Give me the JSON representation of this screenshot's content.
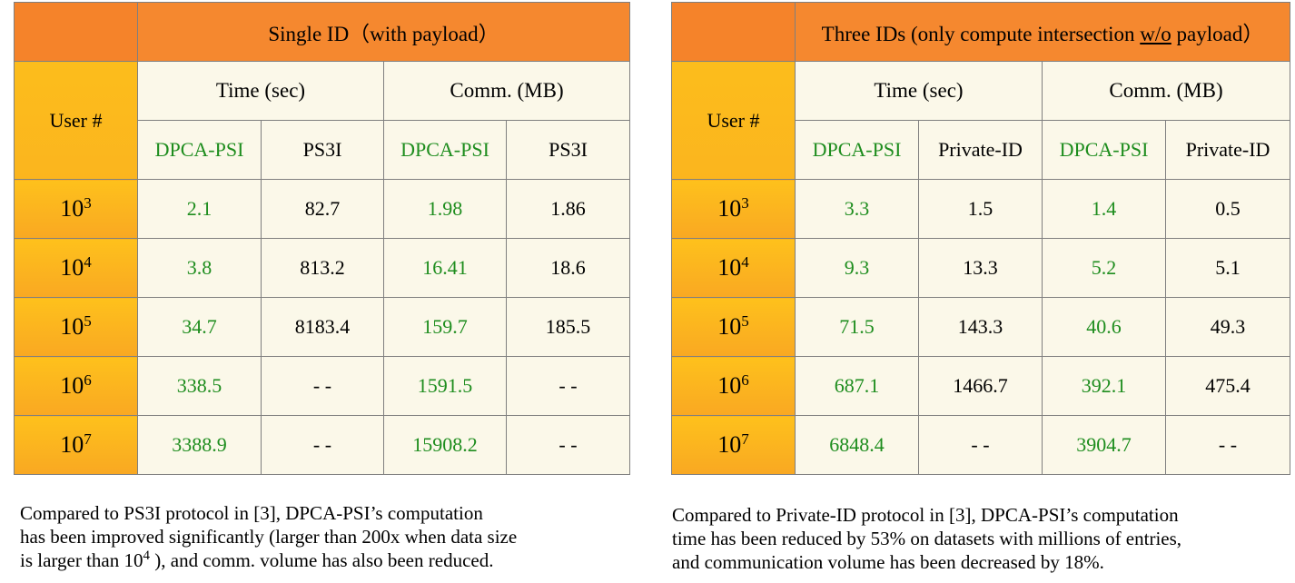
{
  "left_table": {
    "title": "Single ID（with payload）",
    "user_header": "User #",
    "group_time": "Time (sec)",
    "group_comm": "Comm. (MB)",
    "method_a": "DPCA-PSI",
    "method_b": "PS3I",
    "method_c": "DPCA-PSI",
    "method_d": "PS3I",
    "rows": [
      {
        "base": "10",
        "exp": "3",
        "time_a": "2.1",
        "time_b": "82.7",
        "comm_a": "1.98",
        "comm_b": "1.86"
      },
      {
        "base": "10",
        "exp": "4",
        "time_a": "3.8",
        "time_b": "813.2",
        "comm_a": "16.41",
        "comm_b": "18.6"
      },
      {
        "base": "10",
        "exp": "5",
        "time_a": "34.7",
        "time_b": "8183.4",
        "comm_a": "159.7",
        "comm_b": "185.5"
      },
      {
        "base": "10",
        "exp": "6",
        "time_a": "338.5",
        "time_b": "- -",
        "comm_a": "1591.5",
        "comm_b": "- -"
      },
      {
        "base": "10",
        "exp": "7",
        "time_a": "3388.9",
        "time_b": "- -",
        "comm_a": "15908.2",
        "comm_b": "- -"
      }
    ]
  },
  "right_table": {
    "title_pre": "Three IDs (only compute intersection ",
    "title_underlined": "w/o",
    "title_post": " payload）",
    "user_header": "User #",
    "group_time": "Time (sec)",
    "group_comm": "Comm. (MB)",
    "method_a": "DPCA-PSI",
    "method_b": "Private-ID",
    "method_c": "DPCA-PSI",
    "method_d": "Private-ID",
    "rows": [
      {
        "base": "10",
        "exp": "3",
        "time_a": "3.3",
        "time_b": "1.5",
        "comm_a": "1.4",
        "comm_b": "0.5"
      },
      {
        "base": "10",
        "exp": "4",
        "time_a": "9.3",
        "time_b": "13.3",
        "comm_a": "5.2",
        "comm_b": "5.1"
      },
      {
        "base": "10",
        "exp": "5",
        "time_a": "71.5",
        "time_b": "143.3",
        "comm_a": "40.6",
        "comm_b": "49.3"
      },
      {
        "base": "10",
        "exp": "6",
        "time_a": "687.1",
        "time_b": "1466.7",
        "comm_a": "392.1",
        "comm_b": "475.4"
      },
      {
        "base": "10",
        "exp": "7",
        "time_a": "6848.4",
        "time_b": "- -",
        "comm_a": "3904.7",
        "comm_b": "- -"
      }
    ]
  },
  "left_caption": {
    "line1": "Compared to PS3I protocol in [3], DPCA-PSI’s computation",
    "line2": "has been improved significantly (larger than 200x when data size",
    "line3_pre": "is larger than 10",
    "line3_exp": "4",
    "line3_post": " ), and comm. volume has also been reduced."
  },
  "right_caption": {
    "line1": "Compared to Private-ID protocol in [3], DPCA-PSI’s computation",
    "line2": "time has been reduced by 53% on datasets with millions of entries,",
    "line3": "and communication volume has been decreased by 18%."
  },
  "colors": {
    "header_orange": "#f5882f",
    "user_gold": "#fcbd1c",
    "cell_cream": "#fbf8e9",
    "highlight_green": "#1e8d1e"
  }
}
